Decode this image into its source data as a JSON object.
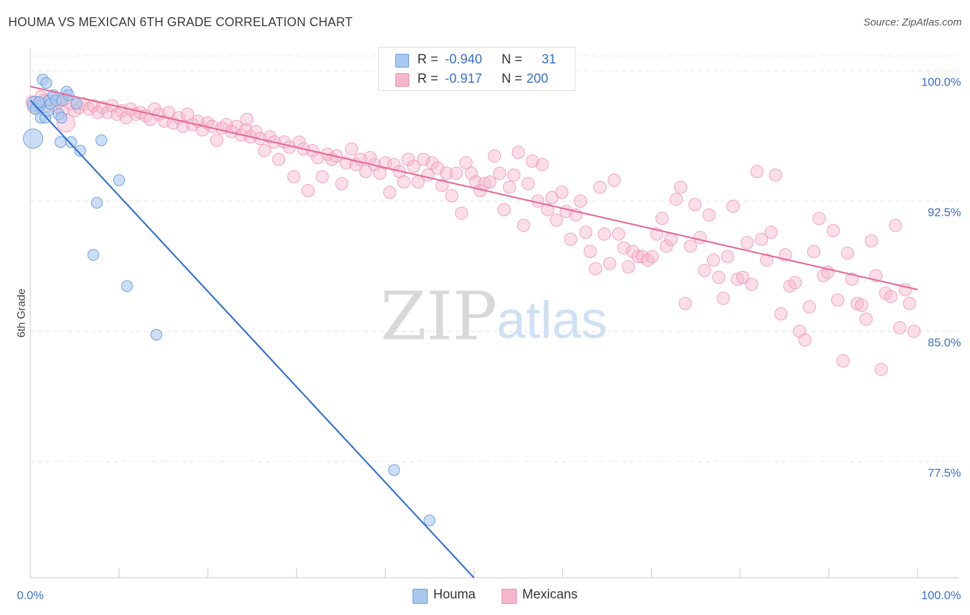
{
  "header": {
    "title": "HOUMA VS MEXICAN 6TH GRADE CORRELATION CHART",
    "source": "Source: ZipAtlas.com"
  },
  "watermark": {
    "zip": "ZIP",
    "atlas": "atlas"
  },
  "legend": {
    "houma": {
      "r_label": "R =",
      "r_value": "-0.940",
      "n_label": "N =",
      "n_value": "31"
    },
    "mexicans": {
      "r_label": "R =",
      "r_value": "-0.917",
      "n_label": "N =",
      "n_value": "200"
    }
  },
  "bottom_legend": {
    "houma": "Houma",
    "mexicans": "Mexicans"
  },
  "colors": {
    "houma_fill": "#a9c8f0",
    "houma_stroke": "#6d9ee0",
    "houma_line": "#2f6fd1",
    "mexicans_fill": "#f6b6ca",
    "mexicans_stroke": "#ec8fae",
    "mexicans_line": "#e56a96",
    "axis_label": "#3a6fc8",
    "grid": "#e3e3e3"
  },
  "chart_data": {
    "type": "scatter",
    "title": "HOUMA VS MEXICAN 6TH GRADE CORRELATION CHART",
    "xlabel": "",
    "ylabel": "6th Grade",
    "x_ticks": [
      "0.0%",
      "100.0%"
    ],
    "y_ticks": [
      "100.0%",
      "92.5%",
      "85.0%",
      "77.5%"
    ],
    "y_tick_values": [
      100.0,
      92.5,
      85.0,
      77.5
    ],
    "xlim": [
      0,
      100
    ],
    "ylim": [
      70.8,
      101.3
    ],
    "grid": true,
    "legend_position": "top-center",
    "series": [
      {
        "name": "Houma",
        "r": -0.94,
        "n": 31,
        "trend": [
          [
            0.0,
            98.3
          ],
          [
            50.0,
            70.8
          ]
        ],
        "points": [
          [
            0.3,
            96.1,
            22
          ],
          [
            0.5,
            98.1,
            14
          ],
          [
            0.6,
            97.8,
            10
          ],
          [
            1.1,
            98.0,
            10
          ],
          [
            1.2,
            97.3,
            10
          ],
          [
            1.4,
            99.5,
            10
          ],
          [
            1.7,
            97.3,
            10
          ],
          [
            1.8,
            99.3,
            10
          ],
          [
            2.0,
            97.7,
            10
          ],
          [
            2.1,
            98.3,
            10
          ],
          [
            2.3,
            98.1,
            10
          ],
          [
            2.6,
            98.6,
            10
          ],
          [
            2.9,
            98.3,
            10
          ],
          [
            3.2,
            97.5,
            10
          ],
          [
            3.5,
            97.3,
            10
          ],
          [
            3.6,
            98.3,
            10
          ],
          [
            4.1,
            98.8,
            10
          ],
          [
            4.3,
            98.6,
            10
          ],
          [
            3.4,
            95.9,
            10
          ],
          [
            4.6,
            95.9,
            10
          ],
          [
            5.6,
            95.4,
            10
          ],
          [
            8.0,
            96.0,
            10
          ],
          [
            5.2,
            98.1,
            10
          ],
          [
            10.0,
            93.7,
            10
          ],
          [
            7.5,
            92.4,
            10
          ],
          [
            7.1,
            89.4,
            10
          ],
          [
            10.9,
            87.6,
            10
          ],
          [
            14.2,
            84.8,
            10
          ],
          [
            41.0,
            77.0,
            10
          ],
          [
            45.0,
            74.1,
            10
          ],
          [
            1.0,
            98.2,
            10
          ]
        ]
      },
      {
        "name": "Mexicans",
        "r": -0.917,
        "n": 200,
        "trend": [
          [
            0.0,
            99.1
          ],
          [
            100.0,
            87.4
          ]
        ],
        "points": [
          [
            0.4,
            97.9
          ],
          [
            0.8,
            98.1
          ],
          [
            1.2,
            98.5
          ],
          [
            1.6,
            98.3
          ],
          [
            2.0,
            98.0
          ],
          [
            2.4,
            98.4
          ],
          [
            2.8,
            97.9
          ],
          [
            3.2,
            98.2
          ],
          [
            3.6,
            97.7
          ],
          [
            4.0,
            98.4
          ],
          [
            4.5,
            98.1
          ],
          [
            5.0,
            97.7
          ],
          [
            5.5,
            97.9
          ],
          [
            6.0,
            98.1
          ],
          [
            6.6,
            97.8
          ],
          [
            7.1,
            98.0
          ],
          [
            7.6,
            97.6
          ],
          [
            8.1,
            97.9
          ],
          [
            8.7,
            97.6
          ],
          [
            9.2,
            98.0
          ],
          [
            9.8,
            97.5
          ],
          [
            10.3,
            97.7
          ],
          [
            10.8,
            97.3
          ],
          [
            11.3,
            97.8
          ],
          [
            11.9,
            97.5
          ],
          [
            12.4,
            97.6
          ],
          [
            13.0,
            97.4
          ],
          [
            13.5,
            97.2
          ],
          [
            14.0,
            97.8
          ],
          [
            14.5,
            97.5
          ],
          [
            15.1,
            97.1
          ],
          [
            15.6,
            97.6
          ],
          [
            16.1,
            97.0
          ],
          [
            16.7,
            97.3
          ],
          [
            17.2,
            96.8
          ],
          [
            17.7,
            97.5
          ],
          [
            18.3,
            96.9
          ],
          [
            18.9,
            97.1
          ],
          [
            19.4,
            96.6
          ],
          [
            20.0,
            97.0
          ],
          [
            20.5,
            96.8
          ],
          [
            21.0,
            96.0
          ],
          [
            21.6,
            96.7
          ],
          [
            22.1,
            96.9
          ],
          [
            22.7,
            96.5
          ],
          [
            23.2,
            96.8
          ],
          [
            23.8,
            96.3
          ],
          [
            24.3,
            96.6
          ],
          [
            24.8,
            96.2
          ],
          [
            25.4,
            96.5
          ],
          [
            25.9,
            96.1
          ],
          [
            26.4,
            95.4
          ],
          [
            27.0,
            96.2
          ],
          [
            27.5,
            95.9
          ],
          [
            28.0,
            94.9
          ],
          [
            28.6,
            95.9
          ],
          [
            29.2,
            95.6
          ],
          [
            29.7,
            93.9
          ],
          [
            30.3,
            95.9
          ],
          [
            30.8,
            95.5
          ],
          [
            31.3,
            93.1
          ],
          [
            31.8,
            95.4
          ],
          [
            32.4,
            95.0
          ],
          [
            32.9,
            93.9
          ],
          [
            33.5,
            95.2
          ],
          [
            34.0,
            94.9
          ],
          [
            34.5,
            95.1
          ],
          [
            35.1,
            93.5
          ],
          [
            35.6,
            94.7
          ],
          [
            36.2,
            95.5
          ],
          [
            36.7,
            94.6
          ],
          [
            37.2,
            94.9
          ],
          [
            37.8,
            94.2
          ],
          [
            38.3,
            95.0
          ],
          [
            38.8,
            94.6
          ],
          [
            39.4,
            94.1
          ],
          [
            40.0,
            94.7
          ],
          [
            40.5,
            93.0
          ],
          [
            41.0,
            94.6
          ],
          [
            41.6,
            94.2
          ],
          [
            42.1,
            93.6
          ],
          [
            42.6,
            94.9
          ],
          [
            43.2,
            94.5
          ],
          [
            43.7,
            93.6
          ],
          [
            44.3,
            94.9
          ],
          [
            44.8,
            94.0
          ],
          [
            45.3,
            94.7
          ],
          [
            45.9,
            94.4
          ],
          [
            46.4,
            93.4
          ],
          [
            46.9,
            94.1
          ],
          [
            47.5,
            92.8
          ],
          [
            48.0,
            94.1
          ],
          [
            48.6,
            91.8
          ],
          [
            49.1,
            94.7
          ],
          [
            49.7,
            94.1
          ],
          [
            50.2,
            93.6
          ],
          [
            50.7,
            93.1
          ],
          [
            51.2,
            93.5
          ],
          [
            51.8,
            93.6
          ],
          [
            52.3,
            95.1
          ],
          [
            52.9,
            94.1
          ],
          [
            53.4,
            92.0
          ],
          [
            54.0,
            93.3
          ],
          [
            54.5,
            94.0
          ],
          [
            55.0,
            95.3
          ],
          [
            55.6,
            91.1
          ],
          [
            56.1,
            93.5
          ],
          [
            56.6,
            94.8
          ],
          [
            57.2,
            92.5
          ],
          [
            57.7,
            94.6
          ],
          [
            58.3,
            92.0
          ],
          [
            58.8,
            92.7
          ],
          [
            59.3,
            91.4
          ],
          [
            59.9,
            93.0
          ],
          [
            60.4,
            91.9
          ],
          [
            60.9,
            90.3
          ],
          [
            61.5,
            91.7
          ],
          [
            62.0,
            92.5
          ],
          [
            62.6,
            90.7
          ],
          [
            63.1,
            89.6
          ],
          [
            63.7,
            88.6
          ],
          [
            64.2,
            93.3
          ],
          [
            64.7,
            90.6
          ],
          [
            65.3,
            88.9
          ],
          [
            65.8,
            93.7
          ],
          [
            66.3,
            90.6
          ],
          [
            66.9,
            89.8
          ],
          [
            67.4,
            88.7
          ],
          [
            67.9,
            89.6
          ],
          [
            68.5,
            89.3
          ],
          [
            69.0,
            89.3
          ],
          [
            69.6,
            89.1
          ],
          [
            70.1,
            89.3
          ],
          [
            70.6,
            90.6
          ],
          [
            71.2,
            91.5
          ],
          [
            71.7,
            89.9
          ],
          [
            72.2,
            90.3
          ],
          [
            72.8,
            92.6
          ],
          [
            73.3,
            93.3
          ],
          [
            73.8,
            86.6
          ],
          [
            74.4,
            89.9
          ],
          [
            74.9,
            92.3
          ],
          [
            75.5,
            90.4
          ],
          [
            76.0,
            88.5
          ],
          [
            76.5,
            91.7
          ],
          [
            77.0,
            89.1
          ],
          [
            77.6,
            88.1
          ],
          [
            78.1,
            86.9
          ],
          [
            78.6,
            89.3
          ],
          [
            79.2,
            92.2
          ],
          [
            79.7,
            88.0
          ],
          [
            80.3,
            88.1
          ],
          [
            80.8,
            90.1
          ],
          [
            81.3,
            87.7
          ],
          [
            81.9,
            94.2
          ],
          [
            82.4,
            90.3
          ],
          [
            83.0,
            89.1
          ],
          [
            83.5,
            90.7
          ],
          [
            84.0,
            94.0
          ],
          [
            84.6,
            86.0
          ],
          [
            85.1,
            89.4
          ],
          [
            85.6,
            87.6
          ],
          [
            86.2,
            87.8
          ],
          [
            86.7,
            85.0
          ],
          [
            87.3,
            84.5
          ],
          [
            87.8,
            86.4
          ],
          [
            88.3,
            89.6
          ],
          [
            88.9,
            91.5
          ],
          [
            89.4,
            88.2
          ],
          [
            89.9,
            88.4
          ],
          [
            90.5,
            90.8
          ],
          [
            91.0,
            86.8
          ],
          [
            91.6,
            83.3
          ],
          [
            92.1,
            89.5
          ],
          [
            92.6,
            88.0
          ],
          [
            93.2,
            86.6
          ],
          [
            93.7,
            86.5
          ],
          [
            94.2,
            85.7
          ],
          [
            94.8,
            90.2
          ],
          [
            95.3,
            88.2
          ],
          [
            95.9,
            82.8
          ],
          [
            96.4,
            87.2
          ],
          [
            97.0,
            87.0
          ],
          [
            97.5,
            91.1
          ],
          [
            98.0,
            85.2
          ],
          [
            98.6,
            87.4
          ],
          [
            99.1,
            86.6
          ],
          [
            99.6,
            85.0
          ],
          [
            24.4,
            97.2
          ],
          [
            0.2,
            98.2
          ]
        ]
      }
    ]
  }
}
